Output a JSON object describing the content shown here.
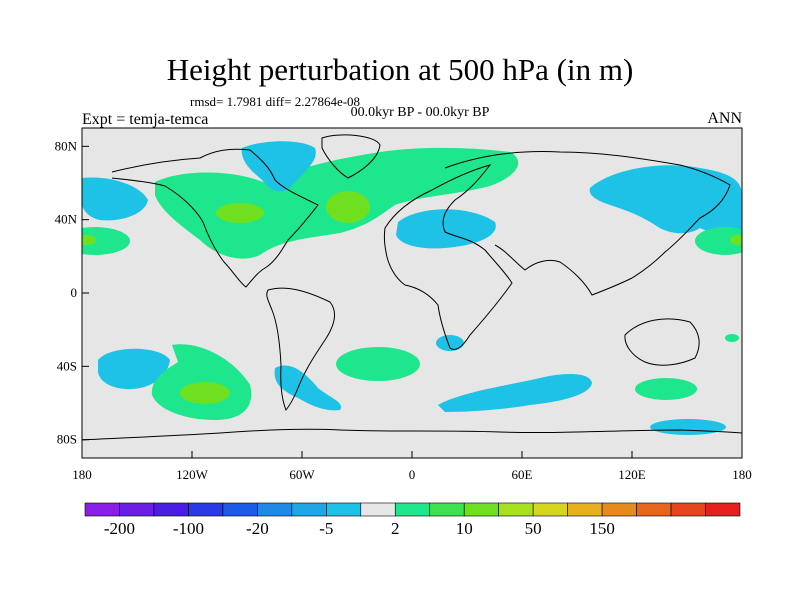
{
  "title": "Height perturbation at 500 hPa (in m)",
  "subtitle": "rmsd= 1.7981 diff= 2.27864e-08",
  "left_label": "Expt = temja-temca",
  "center_label": "00.0kyr BP - 00.0kyr BP",
  "right_label": "ANN",
  "colors": {
    "ocean_bg": "#e6e6e6",
    "blue": "#1ec2e6",
    "green": "#1ee68c",
    "green_dark": "#6ee020",
    "coast": "#000000"
  },
  "map": {
    "lat_ticks": [
      {
        "value": 80,
        "label": "80N"
      },
      {
        "value": 40,
        "label": "40N"
      },
      {
        "value": 0,
        "label": "0"
      },
      {
        "value": -40,
        "label": "40S"
      },
      {
        "value": -80,
        "label": "80S"
      }
    ],
    "lon_ticks": [
      {
        "value": -180,
        "label": "180"
      },
      {
        "value": -120,
        "label": "120W"
      },
      {
        "value": -60,
        "label": "60W"
      },
      {
        "value": 0,
        "label": "0"
      },
      {
        "value": 60,
        "label": "60E"
      },
      {
        "value": 120,
        "label": "120E"
      },
      {
        "value": 180,
        "label": "180"
      }
    ]
  },
  "colorbar": {
    "colors": [
      "#8a1ee6",
      "#6a1ee6",
      "#4a1ee6",
      "#2a3ae6",
      "#1a5ae6",
      "#1e8ae6",
      "#1ea6e6",
      "#1ec2e6",
      "#e6e6e6",
      "#1ee68c",
      "#3ee050",
      "#6ee020",
      "#a6e01e",
      "#d6d61e",
      "#e6b01e",
      "#e68a1e",
      "#e6661e",
      "#e6461e",
      "#e61e1e"
    ],
    "labels": [
      "-200",
      "-100",
      "-20",
      "-5",
      "2",
      "10",
      "50",
      "150"
    ]
  },
  "chart_data": {
    "type": "map",
    "variable": "Height perturbation at 500 hPa (in m)",
    "stats": {
      "rmsd": 1.7981,
      "diff": 2.27864e-08
    },
    "lat_range": [
      -90,
      90
    ],
    "lon_range": [
      -180,
      180
    ],
    "contour_levels_labeled": [
      -200,
      -100,
      -20,
      -5,
      2,
      10,
      50,
      150
    ]
  }
}
